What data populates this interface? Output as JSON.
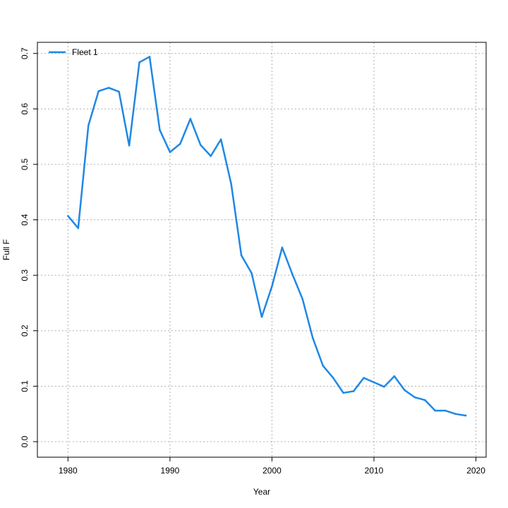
{
  "chart_data": {
    "type": "line",
    "title": "",
    "xlabel": "Year",
    "ylabel": "Full F",
    "xlim": [
      1977,
      2021
    ],
    "ylim": [
      -0.028,
      0.72
    ],
    "xticks": [
      "1980",
      "1990",
      "2000",
      "2010",
      "2020"
    ],
    "yticks": [
      "0.0",
      "0.1",
      "0.2",
      "0.3",
      "0.4",
      "0.5",
      "0.6",
      "0.7"
    ],
    "grid": true,
    "legend": "top-left",
    "series": [
      {
        "name": "Fleet 1",
        "color": "#1e88e5",
        "x": [
          1980,
          1981,
          1982,
          1983,
          1984,
          1985,
          1986,
          1987,
          1988,
          1989,
          1990,
          1991,
          1992,
          1993,
          1994,
          1995,
          1996,
          1997,
          1998,
          1999,
          2000,
          2001,
          2002,
          2003,
          2004,
          2005,
          2006,
          2007,
          2008,
          2009,
          2010,
          2011,
          2012,
          2013,
          2014,
          2015,
          2016,
          2017,
          2018,
          2019
        ],
        "y": [
          0.407,
          0.385,
          0.57,
          0.632,
          0.638,
          0.631,
          0.534,
          0.684,
          0.694,
          0.562,
          0.522,
          0.537,
          0.582,
          0.535,
          0.515,
          0.545,
          0.465,
          0.336,
          0.304,
          0.225,
          0.28,
          0.35,
          0.302,
          0.257,
          0.187,
          0.137,
          0.115,
          0.088,
          0.091,
          0.115,
          0.107,
          0.099,
          0.118,
          0.093,
          0.08,
          0.075,
          0.056,
          0.056,
          0.05,
          0.047
        ]
      }
    ]
  }
}
